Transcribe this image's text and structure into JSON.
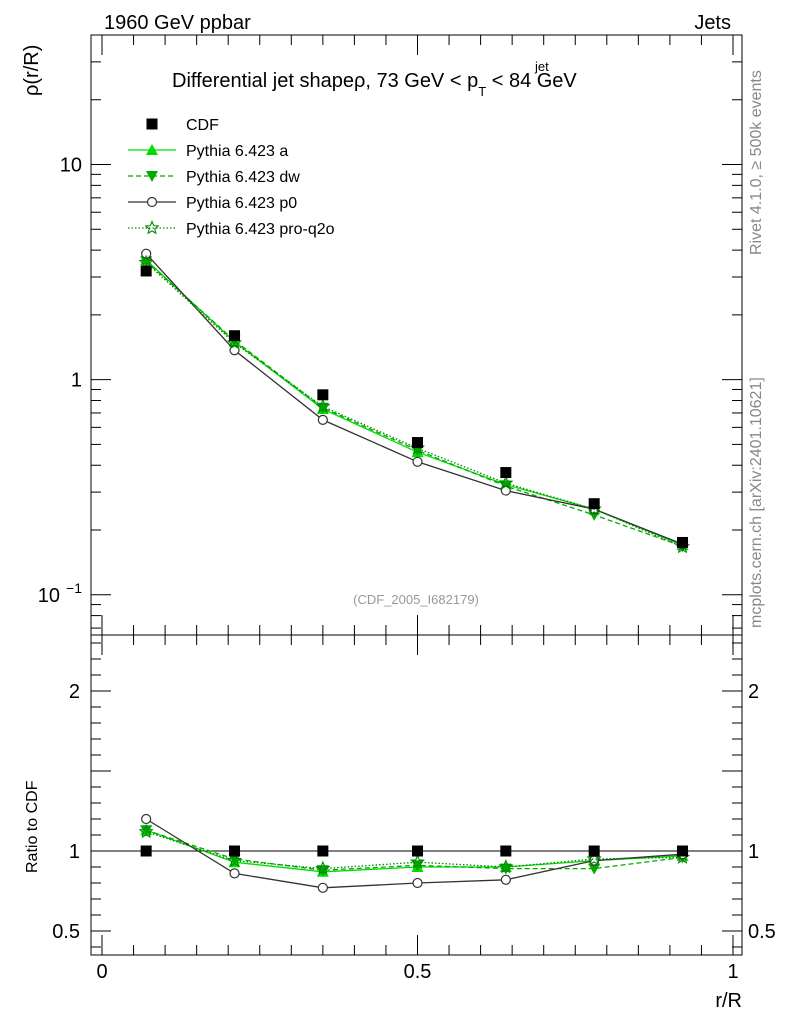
{
  "header": {
    "left": "1960 GeV ppbar",
    "right": "Jets"
  },
  "side_labels": {
    "rivet": "Rivet 4.1.0, ≥ 500k events",
    "mcplots": "mcplots.cern.ch [arXiv:2401.10621]"
  },
  "chart_data": [
    {
      "type": "line",
      "panel": "main",
      "title_parts": {
        "main": "Differential jet shapeρ, 73 GeV < p",
        "sub": "T",
        "sup": "jet",
        "tail": " < 84 GeV"
      },
      "watermark": "(CDF_2005_I682179)",
      "ylabel": "ρ(r/R)",
      "xlabel": "r/R",
      "yscale": "log",
      "ylim": [
        0.065,
        40
      ],
      "xlim": [
        0,
        1
      ],
      "yticks": [
        {
          "value": 0.1,
          "base": "10",
          "exp": "−1"
        },
        {
          "value": 1,
          "base": "1",
          "exp": ""
        },
        {
          "value": 10,
          "base": "10",
          "exp": ""
        }
      ],
      "x": [
        0.07,
        0.21,
        0.35,
        0.5,
        0.64,
        0.78,
        0.92
      ],
      "series": [
        {
          "name": "CDF",
          "style": "data",
          "color": "#000000",
          "marker": "square",
          "values": [
            3.2,
            1.6,
            0.85,
            0.51,
            0.37,
            0.265,
            0.175
          ]
        },
        {
          "name": "Pythia 6.423 a",
          "style": "solid",
          "color": "#00dd00",
          "marker": "triangle-up",
          "values": [
            3.6,
            1.5,
            0.73,
            0.46,
            0.325,
            0.25,
            0.17
          ]
        },
        {
          "name": "Pythia 6.423 dw",
          "style": "dashed",
          "color": "#00aa00",
          "marker": "triangle-down",
          "values": [
            3.55,
            1.52,
            0.74,
            0.47,
            0.32,
            0.235,
            0.168
          ]
        },
        {
          "name": "Pythia 6.423 p0",
          "style": "solid",
          "color": "#333333",
          "marker": "circle",
          "values": [
            3.85,
            1.37,
            0.65,
            0.415,
            0.305,
            0.25,
            0.172
          ]
        },
        {
          "name": "Pythia 6.423 pro-q2o",
          "style": "dotted",
          "color": "#008800",
          "marker": "star",
          "values": [
            3.5,
            1.48,
            0.75,
            0.48,
            0.33,
            0.25,
            0.167
          ]
        }
      ]
    },
    {
      "type": "line",
      "panel": "ratio",
      "ylabel": "Ratio to CDF",
      "xlabel": "r/R",
      "ylim": [
        0.35,
        2.35
      ],
      "xlim": [
        0,
        1
      ],
      "yticks": [
        {
          "value": 0.5,
          "label": "0.5"
        },
        {
          "value": 1,
          "label": "1"
        },
        {
          "value": 2,
          "label": "2"
        }
      ],
      "xticks": [
        {
          "value": 0,
          "label": "0"
        },
        {
          "value": 0.5,
          "label": "0.5"
        },
        {
          "value": 1,
          "label": "1"
        }
      ],
      "x": [
        0.07,
        0.21,
        0.35,
        0.5,
        0.64,
        0.78,
        0.92
      ],
      "series": [
        {
          "name": "CDF",
          "style": "data",
          "color": "#000000",
          "marker": "square",
          "values": [
            1,
            1,
            1,
            1,
            1,
            1,
            1
          ]
        },
        {
          "name": "Pythia 6.423 a",
          "style": "solid",
          "color": "#00dd00",
          "marker": "triangle-up",
          "values": [
            1.13,
            0.93,
            0.87,
            0.9,
            0.9,
            0.94,
            0.97
          ]
        },
        {
          "name": "Pythia 6.423 dw",
          "style": "dashed",
          "color": "#00aa00",
          "marker": "triangle-down",
          "values": [
            1.13,
            0.95,
            0.88,
            0.91,
            0.89,
            0.89,
            0.96
          ]
        },
        {
          "name": "Pythia 6.423 p0",
          "style": "solid",
          "color": "#333333",
          "marker": "circle",
          "values": [
            1.2,
            0.86,
            0.77,
            0.8,
            0.82,
            0.94,
            0.98
          ]
        },
        {
          "name": "Pythia 6.423 pro-q2o",
          "style": "dotted",
          "color": "#008800",
          "marker": "star",
          "values": [
            1.12,
            0.94,
            0.89,
            0.93,
            0.9,
            0.95,
            0.96
          ]
        }
      ]
    }
  ]
}
